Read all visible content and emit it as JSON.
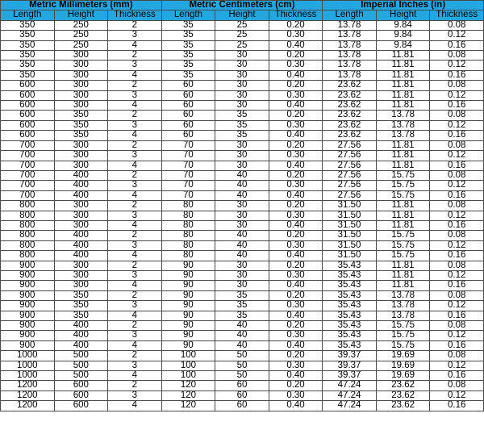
{
  "groups": [
    "Metric Millimeters (mm)",
    "Metric Centimeters (cm)",
    "Imperial Inches (in)"
  ],
  "columns": [
    "Length",
    "Height",
    "Thickness",
    "Length",
    "Height",
    "Thickness",
    "Length",
    "Height",
    "Thickness"
  ],
  "header_color": "#22a7e0",
  "rows": [
    [
      "350",
      "250",
      "2",
      "35",
      "25",
      "0.20",
      "13.78",
      "9.84",
      "0.08"
    ],
    [
      "350",
      "250",
      "3",
      "35",
      "25",
      "0.30",
      "13.78",
      "9.84",
      "0.12"
    ],
    [
      "350",
      "250",
      "4",
      "35",
      "25",
      "0.40",
      "13.78",
      "9.84",
      "0.16"
    ],
    [
      "350",
      "300",
      "2",
      "35",
      "30",
      "0.20",
      "13.78",
      "11.81",
      "0.08"
    ],
    [
      "350",
      "300",
      "3",
      "35",
      "30",
      "0.30",
      "13.78",
      "11.81",
      "0.12"
    ],
    [
      "350",
      "300",
      "4",
      "35",
      "30",
      "0.40",
      "13.78",
      "11.81",
      "0.16"
    ],
    [
      "600",
      "300",
      "2",
      "60",
      "30",
      "0.20",
      "23.62",
      "11.81",
      "0.08"
    ],
    [
      "600",
      "300",
      "3",
      "60",
      "30",
      "0.30",
      "23.62",
      "11.81",
      "0.12"
    ],
    [
      "600",
      "300",
      "4",
      "60",
      "30",
      "0.40",
      "23.62",
      "11.81",
      "0.16"
    ],
    [
      "600",
      "350",
      "2",
      "60",
      "35",
      "0.20",
      "23.62",
      "13.78",
      "0.08"
    ],
    [
      "600",
      "350",
      "3",
      "60",
      "35",
      "0.30",
      "23.62",
      "13.78",
      "0.12"
    ],
    [
      "600",
      "350",
      "4",
      "60",
      "35",
      "0.40",
      "23.62",
      "13.78",
      "0.16"
    ],
    [
      "700",
      "300",
      "2",
      "70",
      "30",
      "0.20",
      "27.56",
      "11.81",
      "0.08"
    ],
    [
      "700",
      "300",
      "3",
      "70",
      "30",
      "0.30",
      "27.56",
      "11.81",
      "0.12"
    ],
    [
      "700",
      "300",
      "4",
      "70",
      "30",
      "0.40",
      "27.56",
      "11.81",
      "0.16"
    ],
    [
      "700",
      "400",
      "2",
      "70",
      "40",
      "0.20",
      "27.56",
      "15.75",
      "0.08"
    ],
    [
      "700",
      "400",
      "3",
      "70",
      "40",
      "0.30",
      "27.56",
      "15.75",
      "0.12"
    ],
    [
      "700",
      "400",
      "4",
      "70",
      "40",
      "0.40",
      "27.56",
      "15.75",
      "0.16"
    ],
    [
      "800",
      "300",
      "2",
      "80",
      "30",
      "0.20",
      "31.50",
      "11.81",
      "0.08"
    ],
    [
      "800",
      "300",
      "3",
      "80",
      "30",
      "0.30",
      "31.50",
      "11.81",
      "0.12"
    ],
    [
      "800",
      "300",
      "4",
      "80",
      "30",
      "0.40",
      "31.50",
      "11.81",
      "0.16"
    ],
    [
      "800",
      "400",
      "2",
      "80",
      "40",
      "0.20",
      "31.50",
      "15.75",
      "0.08"
    ],
    [
      "800",
      "400",
      "3",
      "80",
      "40",
      "0.30",
      "31.50",
      "15.75",
      "0.12"
    ],
    [
      "800",
      "400",
      "4",
      "80",
      "40",
      "0.40",
      "31.50",
      "15.75",
      "0.16"
    ],
    [
      "900",
      "300",
      "2",
      "90",
      "30",
      "0.20",
      "35.43",
      "11.81",
      "0.08"
    ],
    [
      "900",
      "300",
      "3",
      "90",
      "30",
      "0.30",
      "35.43",
      "11.81",
      "0.12"
    ],
    [
      "900",
      "300",
      "4",
      "90",
      "30",
      "0.40",
      "35.43",
      "11.81",
      "0.16"
    ],
    [
      "900",
      "350",
      "2",
      "90",
      "35",
      "0.20",
      "35.43",
      "13.78",
      "0.08"
    ],
    [
      "900",
      "350",
      "3",
      "90",
      "35",
      "0.30",
      "35.43",
      "13.78",
      "0.12"
    ],
    [
      "900",
      "350",
      "4",
      "90",
      "35",
      "0.40",
      "35.43",
      "13.78",
      "0.16"
    ],
    [
      "900",
      "400",
      "2",
      "90",
      "40",
      "0.20",
      "35.43",
      "15.75",
      "0.08"
    ],
    [
      "900",
      "400",
      "3",
      "90",
      "40",
      "0.30",
      "35.43",
      "15.75",
      "0.12"
    ],
    [
      "900",
      "400",
      "4",
      "90",
      "40",
      "0.40",
      "35.43",
      "15.75",
      "0.16"
    ],
    [
      "1000",
      "500",
      "2",
      "100",
      "50",
      "0.20",
      "39.37",
      "19.69",
      "0.08"
    ],
    [
      "1000",
      "500",
      "3",
      "100",
      "50",
      "0.30",
      "39.37",
      "19.69",
      "0.12"
    ],
    [
      "1000",
      "500",
      "4",
      "100",
      "50",
      "0.40",
      "39.37",
      "19.69",
      "0.16"
    ],
    [
      "1200",
      "600",
      "2",
      "120",
      "60",
      "0.20",
      "47.24",
      "23.62",
      "0.08"
    ],
    [
      "1200",
      "600",
      "3",
      "120",
      "60",
      "0.30",
      "47.24",
      "23.62",
      "0.12"
    ],
    [
      "1200",
      "600",
      "4",
      "120",
      "60",
      "0.40",
      "47.24",
      "23.62",
      "0.16"
    ]
  ]
}
